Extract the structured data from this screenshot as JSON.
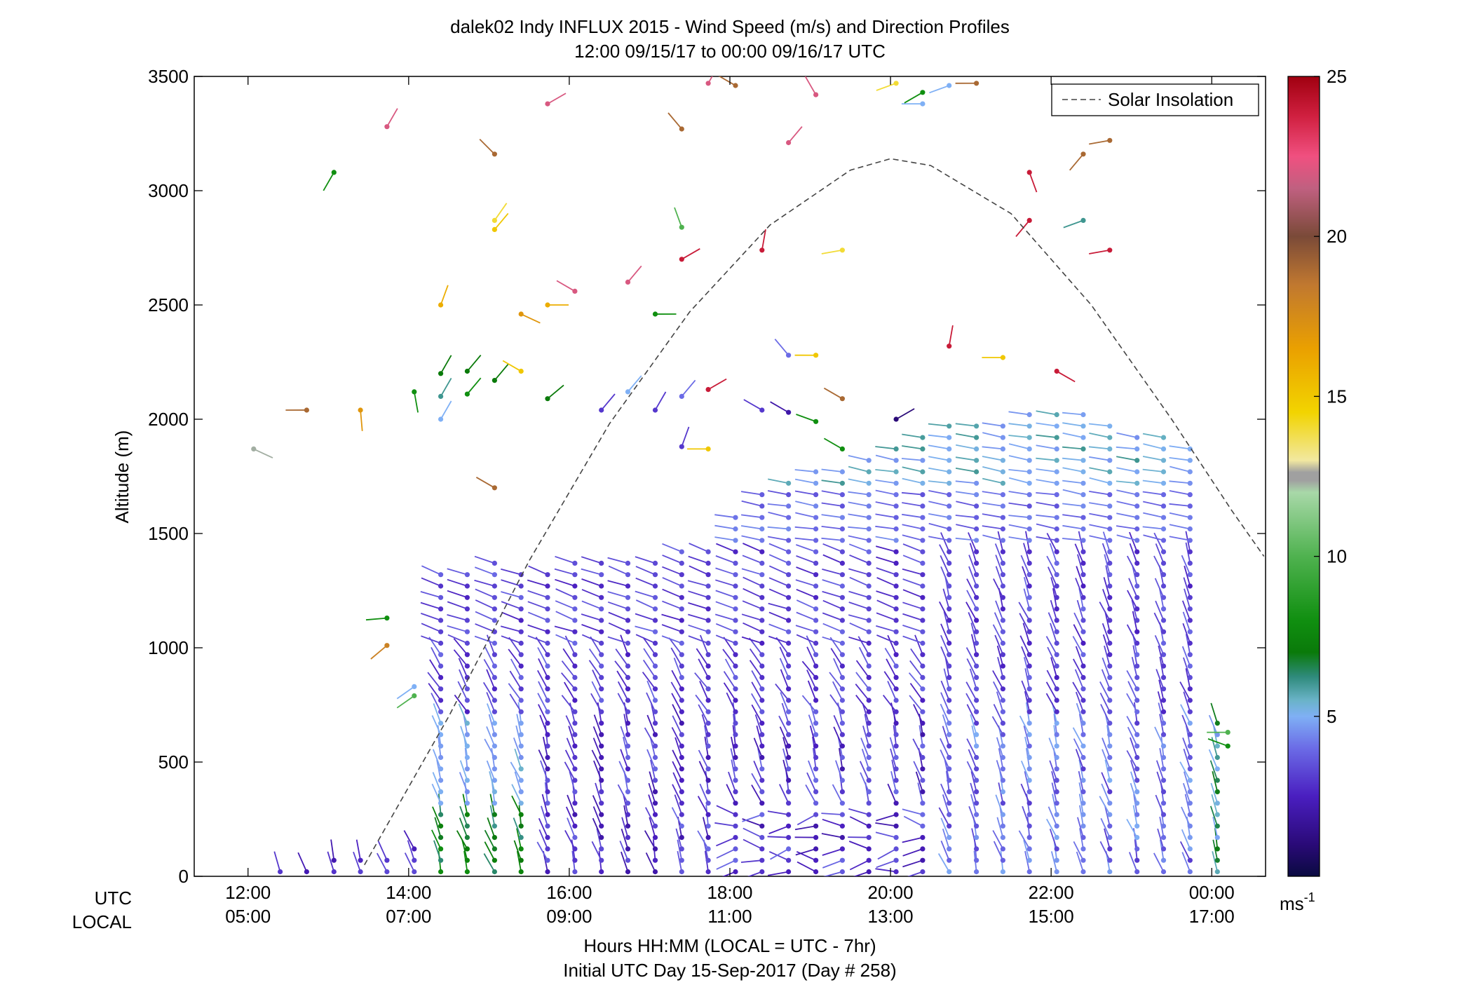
{
  "chart_data": {
    "type": "scatter",
    "subtype": "wind barb profile (dot at altitude, stick pointing along direction, colored by speed)",
    "title": "dalek02 Indy INFLUX 2015 - Wind Speed (m/s) and Direction Profiles",
    "subtitle": "12:00 09/15/17 to 00:00 09/16/17  UTC",
    "ylabel": "Altitude (m)",
    "xlabel": "Hours HH:MM  (LOCAL = UTC - 7hr)",
    "xlabel2": "Initial UTC Day 15-Sep-2017 (Day # 258)",
    "x_row_labels": [
      "UTC",
      "LOCAL"
    ],
    "x_ticks_utc": [
      "12:00",
      "14:00",
      "16:00",
      "18:00",
      "20:00",
      "22:00",
      "00:00"
    ],
    "x_ticks_local": [
      "05:00",
      "07:00",
      "09:00",
      "11:00",
      "13:00",
      "15:00",
      "17:00"
    ],
    "x_tick_hours": [
      12,
      14,
      16,
      18,
      20,
      22,
      24
    ],
    "xlim_hours": [
      11.33,
      24.67
    ],
    "y_ticks": [
      "0",
      "500",
      "1000",
      "1500",
      "2000",
      "2500",
      "3000",
      "3500"
    ],
    "ylim": [
      0,
      3500
    ],
    "legend": {
      "entries": [
        "Solar Insolation"
      ],
      "placement": "top-right"
    },
    "colorbar": {
      "ticks": [
        "5",
        "10",
        "15",
        "20",
        "25"
      ],
      "tick_values": [
        5,
        10,
        15,
        20,
        25
      ],
      "range": [
        0,
        25
      ],
      "unit_base": "ms",
      "unit_exp": "-1"
    },
    "solar_insolation": {
      "x_hours": [
        13.45,
        14.5,
        15.5,
        16.5,
        17.5,
        18.5,
        19.5,
        20.0,
        20.5,
        21.5,
        22.5,
        23.5,
        24.25,
        24.65
      ],
      "y": [
        50,
        700,
        1380,
        1980,
        2470,
        2850,
        3090,
        3140,
        3110,
        2900,
        2500,
        2000,
        1600,
        1400
      ]
    },
    "profile_times_hours": [
      12.4,
      12.73,
      13.07,
      13.4,
      13.73,
      14.07,
      14.4,
      14.73,
      15.07,
      15.4,
      15.73,
      16.07,
      16.4,
      16.73,
      17.07,
      17.4,
      17.73,
      18.07,
      18.4,
      18.73,
      19.07,
      19.4,
      19.73,
      20.07,
      20.4,
      20.73,
      21.07,
      21.4,
      21.73,
      22.07,
      22.4,
      22.73,
      23.07,
      23.4,
      23.73,
      24.07
    ],
    "profile_top_altitude_m": [
      30,
      60,
      90,
      95,
      110,
      130,
      1350,
      1350,
      1390,
      1350,
      1350,
      1380,
      1400,
      1400,
      1400,
      1450,
      1450,
      1600,
      1700,
      1750,
      1780,
      1800,
      1830,
      1900,
      1950,
      1980,
      1990,
      2000,
      2020,
      2020,
      2020,
      2000,
      1950,
      1920,
      1900,
      700
    ],
    "profile_spacing_m": 50,
    "upper_scattered_obs": [
      {
        "t": 12.07,
        "alt": 1870,
        "speed": 12.3,
        "dir_deg": 115
      },
      {
        "t": 12.73,
        "alt": 2040,
        "speed": 19,
        "dir_deg": 270
      },
      {
        "t": 13.07,
        "alt": 3080,
        "speed": 8,
        "dir_deg": 210
      },
      {
        "t": 13.4,
        "alt": 2040,
        "speed": 17,
        "dir_deg": 175
      },
      {
        "t": 13.73,
        "alt": 3280,
        "speed": 22,
        "dir_deg": 30
      },
      {
        "t": 13.73,
        "alt": 1010,
        "speed": 18,
        "dir_deg": 230
      },
      {
        "t": 13.73,
        "alt": 1130,
        "speed": 8,
        "dir_deg": 265
      },
      {
        "t": 14.07,
        "alt": 2120,
        "speed": 8,
        "dir_deg": 170
      },
      {
        "t": 14.07,
        "alt": 830,
        "speed": 5,
        "dir_deg": 235
      },
      {
        "t": 14.07,
        "alt": 790,
        "speed": 10,
        "dir_deg": 235
      },
      {
        "t": 14.4,
        "alt": 2500,
        "speed": 16,
        "dir_deg": 20
      },
      {
        "t": 14.4,
        "alt": 2200,
        "speed": 7,
        "dir_deg": 30
      },
      {
        "t": 14.4,
        "alt": 2100,
        "speed": 6,
        "dir_deg": 30
      },
      {
        "t": 14.4,
        "alt": 2000,
        "speed": 5,
        "dir_deg": 30
      },
      {
        "t": 14.73,
        "alt": 2210,
        "speed": 7,
        "dir_deg": 40
      },
      {
        "t": 14.73,
        "alt": 2110,
        "speed": 8,
        "dir_deg": 40
      },
      {
        "t": 15.07,
        "alt": 3160,
        "speed": 19,
        "dir_deg": 315
      },
      {
        "t": 15.07,
        "alt": 2830,
        "speed": 15,
        "dir_deg": 40
      },
      {
        "t": 15.07,
        "alt": 2870,
        "speed": 14,
        "dir_deg": 35
      },
      {
        "t": 15.07,
        "alt": 2170,
        "speed": 7,
        "dir_deg": 40
      },
      {
        "t": 15.07,
        "alt": 1700,
        "speed": 19,
        "dir_deg": 300
      },
      {
        "t": 15.4,
        "alt": 2460,
        "speed": 17,
        "dir_deg": 115
      },
      {
        "t": 15.4,
        "alt": 2210,
        "speed": 15,
        "dir_deg": 300
      },
      {
        "t": 15.73,
        "alt": 3380,
        "speed": 22,
        "dir_deg": 60
      },
      {
        "t": 15.73,
        "alt": 2500,
        "speed": 16,
        "dir_deg": 90
      },
      {
        "t": 15.73,
        "alt": 2090,
        "speed": 7,
        "dir_deg": 50
      },
      {
        "t": 16.07,
        "alt": 2560,
        "speed": 22,
        "dir_deg": 300
      },
      {
        "t": 16.4,
        "alt": 2040,
        "speed": 3,
        "dir_deg": 40
      },
      {
        "t": 16.73,
        "alt": 2600,
        "speed": 22,
        "dir_deg": 40
      },
      {
        "t": 16.73,
        "alt": 2120,
        "speed": 5,
        "dir_deg": 40
      },
      {
        "t": 17.07,
        "alt": 2460,
        "speed": 8,
        "dir_deg": 90
      },
      {
        "t": 17.07,
        "alt": 2040,
        "speed": 3,
        "dir_deg": 30
      },
      {
        "t": 17.4,
        "alt": 3270,
        "speed": 19,
        "dir_deg": 320
      },
      {
        "t": 17.4,
        "alt": 2840,
        "speed": 10,
        "dir_deg": 340
      },
      {
        "t": 17.4,
        "alt": 2700,
        "speed": 24,
        "dir_deg": 60
      },
      {
        "t": 17.4,
        "alt": 1880,
        "speed": 3,
        "dir_deg": 20
      },
      {
        "t": 17.4,
        "alt": 2100,
        "speed": 4,
        "dir_deg": 40
      },
      {
        "t": 17.73,
        "alt": 3470,
        "speed": 22,
        "dir_deg": 30
      },
      {
        "t": 17.73,
        "alt": 2130,
        "speed": 24,
        "dir_deg": 60
      },
      {
        "t": 17.73,
        "alt": 1870,
        "speed": 15,
        "dir_deg": 270
      },
      {
        "t": 18.07,
        "alt": 3460,
        "speed": 19,
        "dir_deg": 300
      },
      {
        "t": 18.4,
        "alt": 2740,
        "speed": 24,
        "dir_deg": 10
      },
      {
        "t": 18.4,
        "alt": 2040,
        "speed": 3,
        "dir_deg": 300
      },
      {
        "t": 18.73,
        "alt": 3210,
        "speed": 22,
        "dir_deg": 40
      },
      {
        "t": 18.73,
        "alt": 2280,
        "speed": 4,
        "dir_deg": 320
      },
      {
        "t": 18.73,
        "alt": 2030,
        "speed": 2,
        "dir_deg": 300
      },
      {
        "t": 19.07,
        "alt": 3420,
        "speed": 22,
        "dir_deg": 330
      },
      {
        "t": 19.07,
        "alt": 2280,
        "speed": 15,
        "dir_deg": 270
      },
      {
        "t": 19.07,
        "alt": 1990,
        "speed": 8,
        "dir_deg": 290
      },
      {
        "t": 19.4,
        "alt": 2740,
        "speed": 14,
        "dir_deg": 260
      },
      {
        "t": 19.4,
        "alt": 2090,
        "speed": 19,
        "dir_deg": 300
      },
      {
        "t": 19.4,
        "alt": 1870,
        "speed": 8,
        "dir_deg": 300
      },
      {
        "t": 20.07,
        "alt": 3470,
        "speed": 14,
        "dir_deg": 250
      },
      {
        "t": 20.07,
        "alt": 2000,
        "speed": 1,
        "dir_deg": 60
      },
      {
        "t": 20.4,
        "alt": 3380,
        "speed": 5,
        "dir_deg": 270
      },
      {
        "t": 20.4,
        "alt": 3430,
        "speed": 8,
        "dir_deg": 240
      },
      {
        "t": 20.73,
        "alt": 3460,
        "speed": 5,
        "dir_deg": 250
      },
      {
        "t": 20.73,
        "alt": 2320,
        "speed": 24,
        "dir_deg": 10
      },
      {
        "t": 21.07,
        "alt": 3470,
        "speed": 19,
        "dir_deg": 270
      },
      {
        "t": 21.4,
        "alt": 2270,
        "speed": 15,
        "dir_deg": 270
      },
      {
        "t": 21.73,
        "alt": 3080,
        "speed": 24,
        "dir_deg": 160
      },
      {
        "t": 21.73,
        "alt": 2870,
        "speed": 24,
        "dir_deg": 220
      },
      {
        "t": 22.07,
        "alt": 2210,
        "speed": 24,
        "dir_deg": 120
      },
      {
        "t": 22.4,
        "alt": 3160,
        "speed": 19,
        "dir_deg": 220
      },
      {
        "t": 22.4,
        "alt": 2870,
        "speed": 6,
        "dir_deg": 250
      },
      {
        "t": 22.73,
        "alt": 3220,
        "speed": 19,
        "dir_deg": 260
      },
      {
        "t": 22.73,
        "alt": 2740,
        "speed": 24,
        "dir_deg": 260
      },
      {
        "t": 24.2,
        "alt": 630,
        "speed": 10,
        "dir_deg": 270
      },
      {
        "t": 24.2,
        "alt": 570,
        "speed": 8,
        "dir_deg": 290
      }
    ]
  }
}
